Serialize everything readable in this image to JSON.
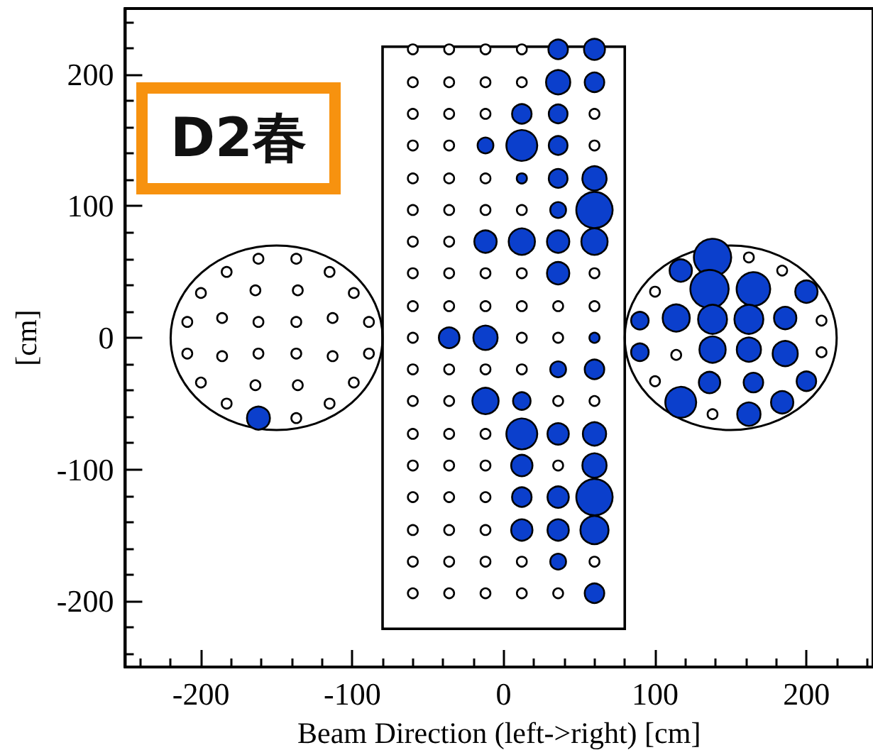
{
  "chart_data": {
    "type": "bubble",
    "relative": false,
    "xlabel": "Beam Direction (left->right) [cm]",
    "ylabel": "[cm]",
    "annotations": [
      "D2春"
    ],
    "xlim": [
      -250,
      244
    ],
    "ylim": [
      -250,
      250
    ],
    "xticks": [
      -200,
      -100,
      0,
      100,
      200,
      {
        "value": -240,
        "label": null
      },
      {
        "value": -220,
        "label": null
      },
      {
        "value": -180,
        "label": null
      },
      {
        "value": -160,
        "label": null
      },
      {
        "value": -140,
        "label": null
      },
      {
        "value": -120,
        "label": null
      },
      {
        "value": -80,
        "label": null
      },
      {
        "value": -60,
        "label": null
      },
      {
        "value": -40,
        "label": null
      },
      {
        "value": -20,
        "label": null
      },
      {
        "value": 20,
        "label": null
      },
      {
        "value": 40,
        "label": null
      },
      {
        "value": 60,
        "label": null
      },
      {
        "value": 80,
        "label": null
      },
      {
        "value": 120,
        "label": null
      },
      {
        "value": 140,
        "label": null
      },
      {
        "value": 160,
        "label": null
      },
      {
        "value": 180,
        "label": null
      },
      {
        "value": 220,
        "label": null
      },
      {
        "value": 240,
        "label": null
      }
    ],
    "yticks": [
      -200,
      -100,
      0,
      100,
      200,
      {
        "value": -240,
        "label": null
      },
      {
        "value": -220,
        "label": null
      },
      {
        "value": -180,
        "label": null
      },
      {
        "value": -160,
        "label": null
      },
      {
        "value": -140,
        "label": null
      },
      {
        "value": -120,
        "label": null
      },
      {
        "value": -80,
        "label": null
      },
      {
        "value": -60,
        "label": null
      },
      {
        "value": -40,
        "label": null
      },
      {
        "value": -20,
        "label": null
      },
      {
        "value": 20,
        "label": null
      },
      {
        "value": 40,
        "label": null
      },
      {
        "value": 60,
        "label": null
      },
      {
        "value": 80,
        "label": null
      },
      {
        "value": 120,
        "label": null
      },
      {
        "value": 140,
        "label": null
      },
      {
        "value": 160,
        "label": null
      },
      {
        "value": 180,
        "label": null
      },
      {
        "value": 220,
        "label": null
      },
      {
        "value": 240,
        "label": null
      }
    ],
    "grid": false,
    "marker": "circle",
    "series": [
      {
        "type": "scatter",
        "color": "#ffffff",
        "x": [
          -60,
          -36,
          -12,
          12,
          -60,
          -36,
          -12,
          12,
          -60,
          -36,
          -12,
          60,
          -60,
          -36,
          60,
          -60,
          -36,
          -12,
          -60,
          -36,
          -12,
          12,
          -60,
          -36,
          -60,
          -36,
          -12,
          12,
          60,
          -60,
          -36,
          -12,
          12,
          36,
          60,
          -60,
          12,
          36,
          -60,
          -36,
          -12,
          12,
          -60,
          -36,
          36,
          60,
          -60,
          -36,
          -12,
          -60,
          -36,
          -12,
          36,
          -60,
          -36,
          -12,
          -60,
          -36,
          -12,
          -60,
          -36,
          -12,
          12,
          60,
          -60,
          -36,
          -12,
          12,
          36,
          -162,
          -137,
          -183,
          -115,
          -200,
          -164,
          -136,
          -99,
          -209,
          -186,
          -162,
          -137,
          -113,
          -89,
          -209,
          -186,
          -162,
          -137,
          -113,
          -89,
          -200,
          -164,
          -136,
          -99,
          -183,
          -137,
          -115,
          162,
          184,
          100,
          210,
          114,
          210,
          100,
          138
        ],
        "values": [
          219,
          219,
          219,
          219,
          194,
          194,
          194,
          194,
          170,
          170,
          170,
          170,
          146,
          146,
          146,
          121,
          121,
          121,
          97,
          97,
          97,
          97,
          73,
          73,
          49,
          49,
          49,
          49,
          49,
          24,
          24,
          24,
          24,
          24,
          24,
          0,
          0,
          0,
          -24,
          -24,
          -24,
          -24,
          -48,
          -48,
          -48,
          -48,
          -73,
          -73,
          -73,
          -97,
          -97,
          -97,
          -97,
          -121,
          -121,
          -121,
          -146,
          -146,
          -146,
          -170,
          -170,
          -170,
          -170,
          -170,
          -194,
          -194,
          -194,
          -194,
          -194,
          60,
          60,
          50,
          50,
          34,
          36,
          36,
          34,
          12,
          15,
          12,
          12,
          15,
          12,
          -12,
          -14,
          -12,
          -12,
          -14,
          -12,
          -34,
          -36,
          -36,
          -34,
          -50,
          -61,
          -50,
          61,
          51,
          35,
          13,
          -13,
          -11,
          -33,
          -58
        ]
      },
      {
        "color": "#0b3fcc",
        "x": [
          36,
          60,
          36,
          60,
          12,
          36,
          -12,
          12,
          36,
          12,
          36,
          60,
          36,
          60,
          -12,
          12,
          36,
          60,
          36,
          -36,
          -12,
          60,
          36,
          60,
          -12,
          12,
          12,
          36,
          60,
          12,
          60,
          12,
          36,
          60,
          12,
          36,
          60,
          36,
          60,
          -162,
          138,
          117,
          136,
          165,
          200,
          90,
          114,
          138,
          162,
          186,
          90,
          138,
          162,
          186,
          136,
          165,
          200,
          117,
          162,
          184
        ],
        "values": [
          219,
          219,
          194,
          194,
          170,
          170,
          146,
          146,
          146,
          121,
          121,
          121,
          97,
          97,
          73,
          73,
          73,
          73,
          49,
          0,
          0,
          0,
          -24,
          -24,
          -48,
          -48,
          -73,
          -73,
          -73,
          -97,
          -97,
          -121,
          -121,
          -121,
          -146,
          -146,
          -146,
          -170,
          -194,
          -61,
          61,
          51,
          37,
          37,
          35,
          13,
          15,
          14,
          14,
          15,
          -11,
          -9,
          -9,
          -12,
          -34,
          -34,
          -33,
          -49,
          -58,
          -49
        ],
        "sizes": [
          0.26,
          0.3,
          0.4,
          0.26,
          0.26,
          0.24,
          0.17,
          0.65,
          0.24,
          0.07,
          0.24,
          0.4,
          0.17,
          0.9,
          0.34,
          0.47,
          0.34,
          0.47,
          0.34,
          0.29,
          0.4,
          0.07,
          0.17,
          0.26,
          0.47,
          0.21,
          0.65,
          0.31,
          0.37,
          0.31,
          0.4,
          0.26,
          0.31,
          0.9,
          0.31,
          0.31,
          0.54,
          0.17,
          0.26,
          0.36,
          0.95,
          0.34,
          1,
          0.77,
          0.34,
          0.21,
          0.5,
          0.57,
          0.57,
          0.34,
          0.21,
          0.47,
          0.4,
          0.43,
          0.31,
          0.26,
          0.26,
          0.65,
          0.37,
          0.34
        ]
      }
    ]
  }
}
